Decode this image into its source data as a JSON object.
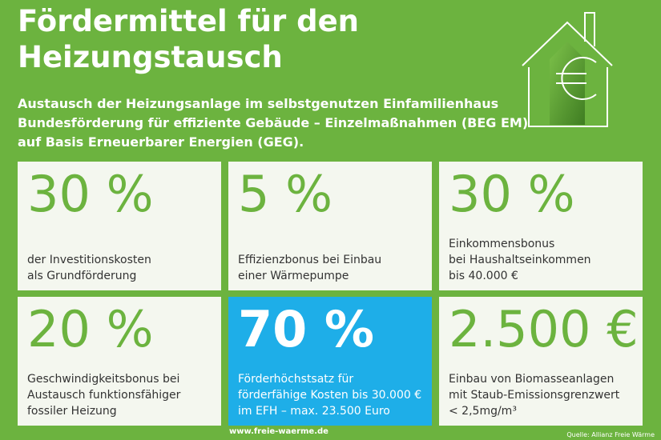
{
  "title": {
    "line1": "Fördermittel für den",
    "line2": "Heizungstausch"
  },
  "subtitle": {
    "line1": "Austausch der Heizungsanlage im selbstgenutzen Einfamilienhaus",
    "line2": "Bundesförderung für effiziente Gebäude – Einzelmaßnahmen (BEG EM)",
    "line3": "auf Basis Erneuerbarer Energien (GEG)."
  },
  "house_icon": {
    "name": "house-euro-icon",
    "symbol": "€"
  },
  "cards": [
    {
      "value": "30 %",
      "lines": [
        "der Investitionskosten",
        "als Grundförderung"
      ]
    },
    {
      "value": "5 %",
      "lines": [
        "Effizienzbonus bei Einbau",
        "einer Wärmepumpe"
      ]
    },
    {
      "value": "30 %",
      "lines": [
        "Einkommensbonus",
        "bei Haushaltseinkommen",
        "bis 40.000 €"
      ]
    },
    {
      "value": "20 %",
      "lines": [
        "Geschwindigkeitsbonus bei",
        "Austausch funktionsfähiger",
        "fossiler Heizung"
      ]
    },
    {
      "value": "70 %",
      "lines": [
        "Förderhöchstsatz für",
        "förderfähige Kosten bis 30.000 €",
        "im EFH – max. 23.500 Euro"
      ]
    },
    {
      "value": "2.500 €",
      "lines": [
        "Einbau von Biomasseanlagen",
        "mit Staub-Emissionsgrenzwert",
        "< 2,5mg/m³"
      ]
    }
  ],
  "footer": {
    "url": "www.freie-waerme.de",
    "source": "Quelle: Allianz Freie Wärme"
  },
  "colors": {
    "background": "#6cb33f",
    "card": "#f4f7ef",
    "highlight": "#1eaee8",
    "accent": "#6cb33f"
  }
}
